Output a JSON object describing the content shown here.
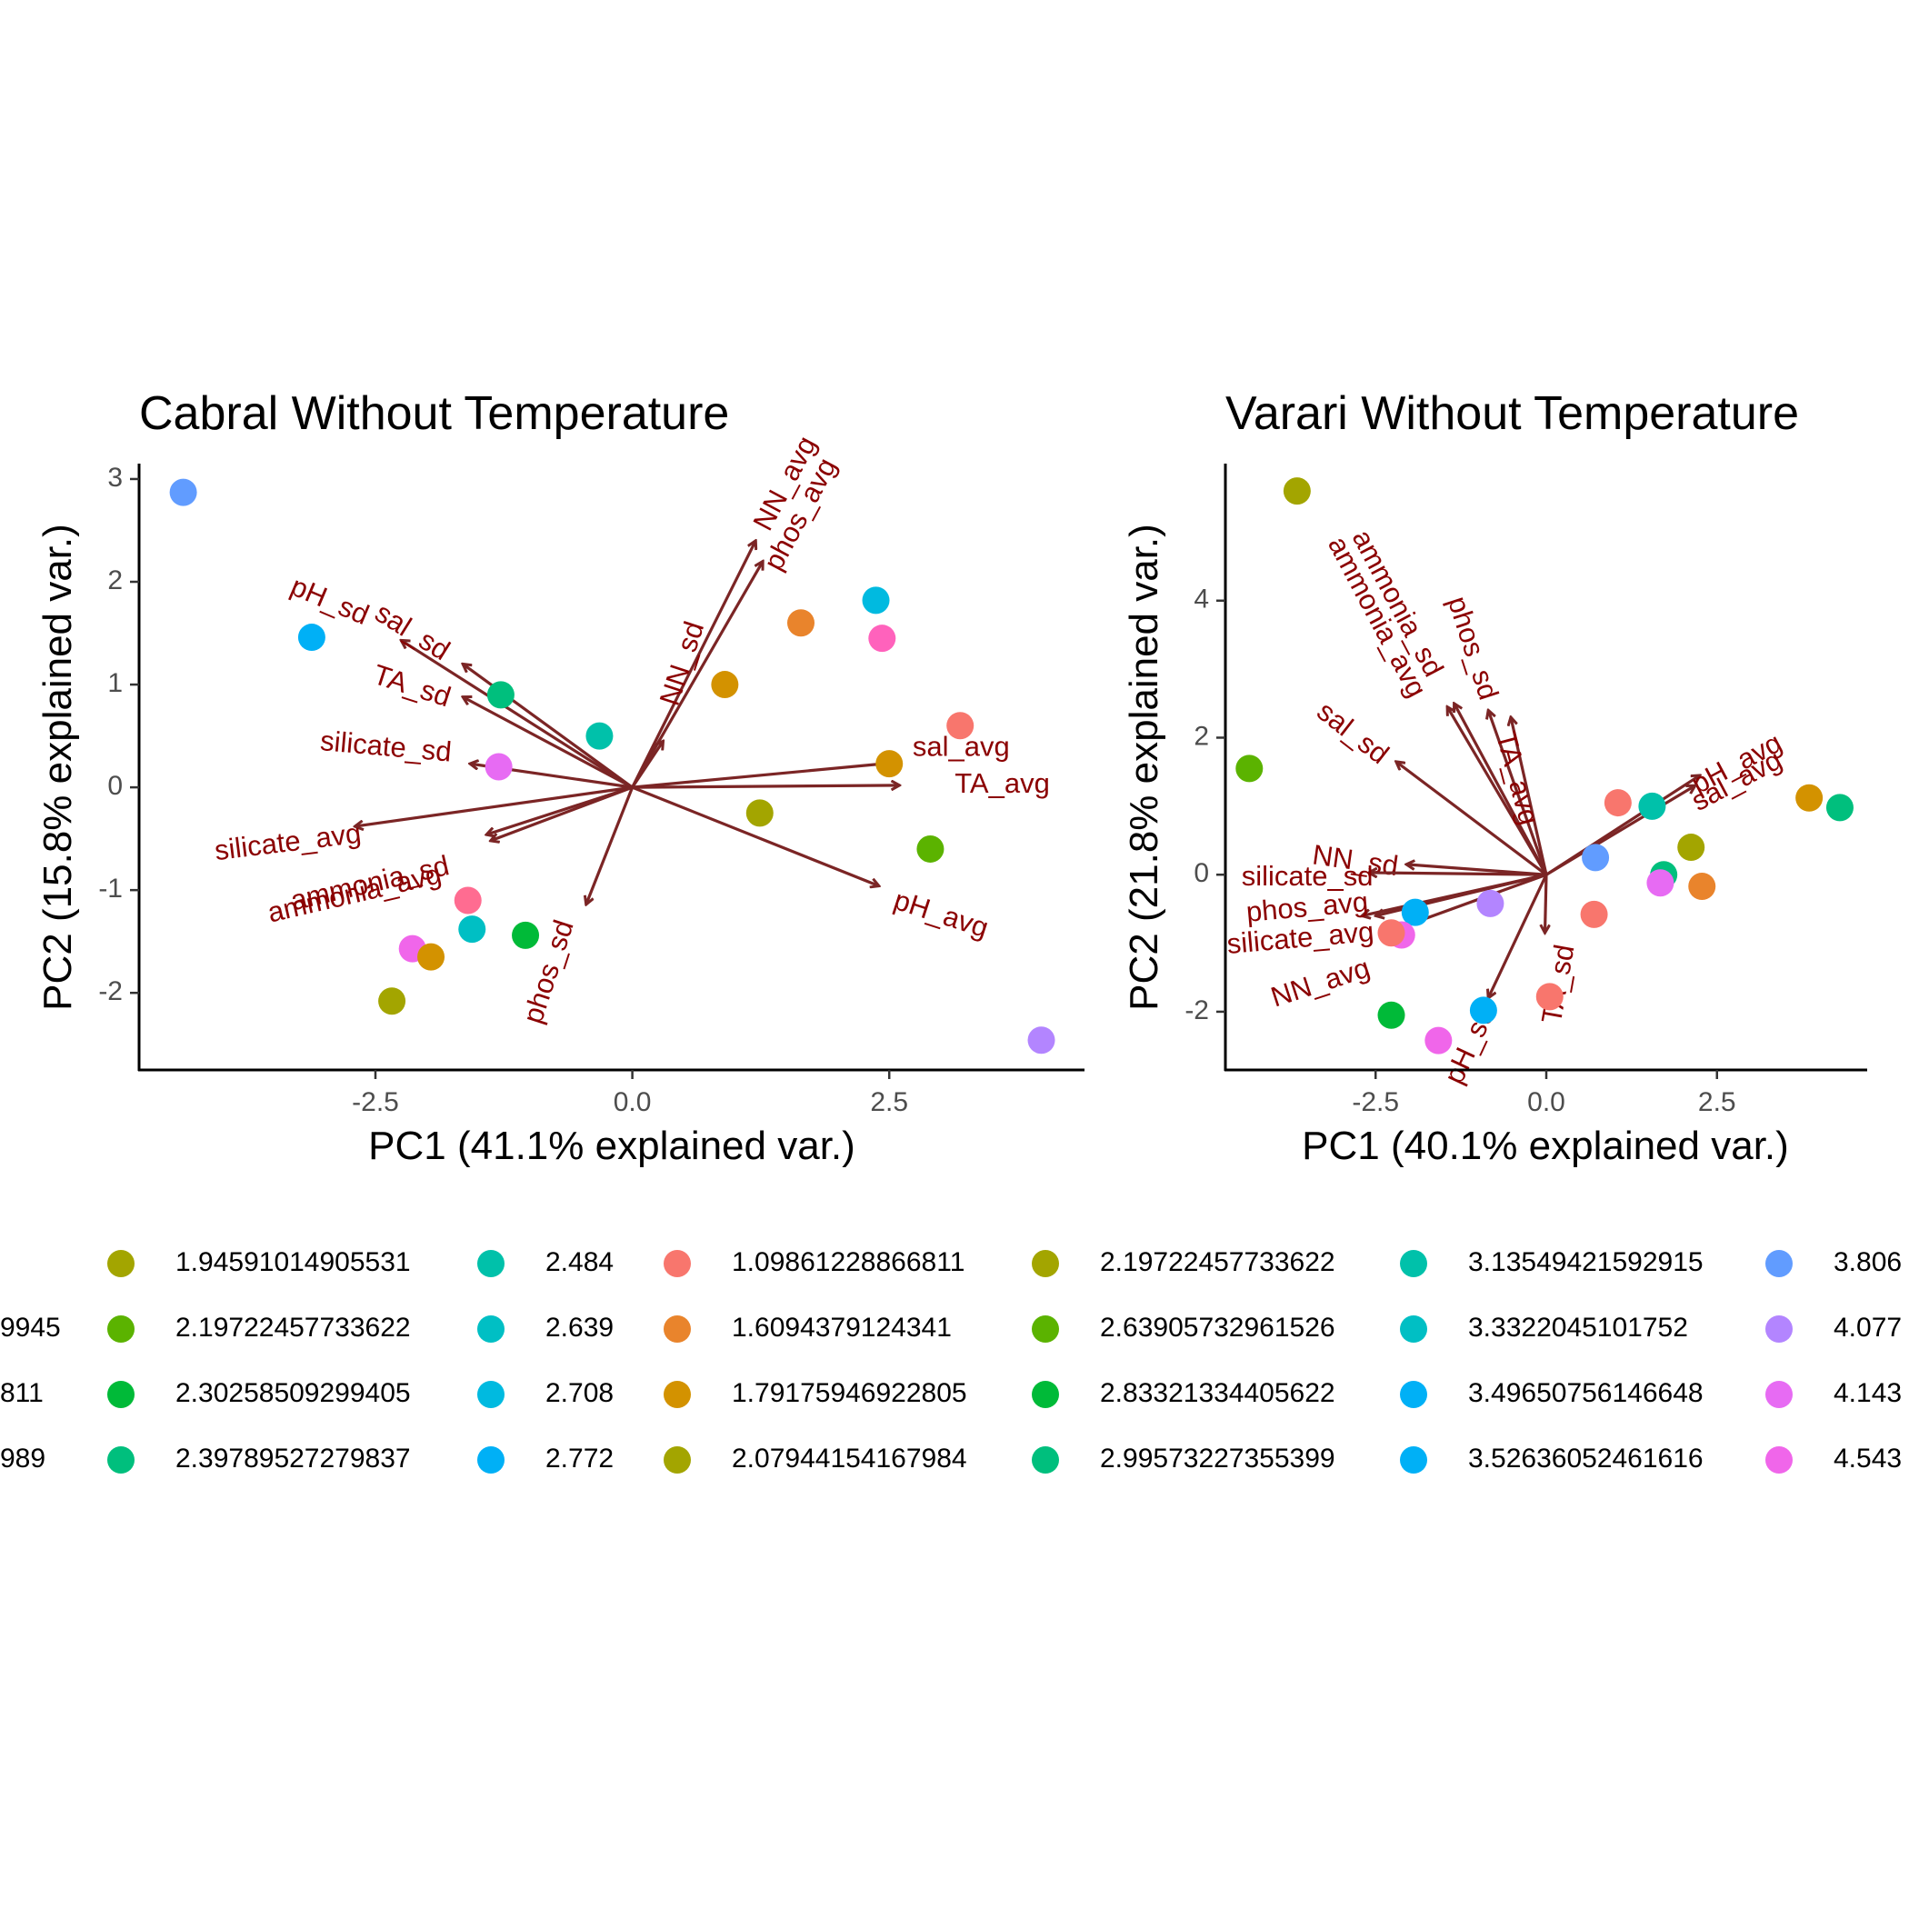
{
  "chart_data": [
    {
      "type": "scatter",
      "title": "Cabral Without Temperature",
      "xlabel": "PC1 (41.1% explained var.)",
      "ylabel": "PC2 (15.8% explained var.)",
      "xlim": [
        -4.8,
        4.4
      ],
      "ylim": [
        -2.75,
        3.15
      ],
      "xticks": [
        {
          "value": -2.5,
          "label": "-2.5"
        },
        {
          "value": 0.0,
          "label": "0.0"
        },
        {
          "value": 2.5,
          "label": "2.5"
        }
      ],
      "yticks": [
        {
          "value": 3,
          "label": "3"
        },
        {
          "value": 2,
          "label": "2"
        },
        {
          "value": 1,
          "label": "1"
        },
        {
          "value": 0,
          "label": "0"
        },
        {
          "value": -1,
          "label": "-1"
        },
        {
          "value": -2,
          "label": "-2"
        }
      ],
      "points": [
        {
          "x": -4.37,
          "y": 2.87,
          "color": "#619CFF"
        },
        {
          "x": -3.12,
          "y": 1.46,
          "color": "#00B0F6"
        },
        {
          "x": -1.28,
          "y": 0.9,
          "color": "#00BF7D"
        },
        {
          "x": -1.3,
          "y": 0.2,
          "color": "#E76BF3"
        },
        {
          "x": -0.32,
          "y": 0.5,
          "color": "#00C1AA"
        },
        {
          "x": 0.9,
          "y": 1.0,
          "color": "#D39200"
        },
        {
          "x": 1.64,
          "y": 1.6,
          "color": "#E9842C"
        },
        {
          "x": 2.37,
          "y": 1.82,
          "color": "#00BAE0"
        },
        {
          "x": 2.43,
          "y": 1.45,
          "color": "#FF62BC"
        },
        {
          "x": 3.19,
          "y": 0.6,
          "color": "#F8766D"
        },
        {
          "x": 2.5,
          "y": 0.23,
          "color": "#D39200"
        },
        {
          "x": 1.24,
          "y": -0.25,
          "color": "#A3A500"
        },
        {
          "x": 2.9,
          "y": -0.6,
          "color": "#5BB300"
        },
        {
          "x": -1.6,
          "y": -1.1,
          "color": "#FF6C91"
        },
        {
          "x": -1.56,
          "y": -1.38,
          "color": "#00BFC4"
        },
        {
          "x": -1.04,
          "y": -1.44,
          "color": "#00BA38"
        },
        {
          "x": -2.14,
          "y": -1.57,
          "color": "#F066EA"
        },
        {
          "x": -1.96,
          "y": -1.65,
          "color": "#D39200"
        },
        {
          "x": -2.34,
          "y": -2.08,
          "color": "#A3A500"
        },
        {
          "x": 3.98,
          "y": -2.46,
          "color": "#B385FF"
        }
      ],
      "loadings": [
        {
          "label": "NN_avg",
          "x": 1.2,
          "y": 2.4,
          "lx": 1.5,
          "ly": 2.95,
          "rot": -62
        },
        {
          "label": "phos_avg",
          "x": 1.27,
          "y": 2.2,
          "lx": 1.65,
          "ly": 2.65,
          "rot": -62
        },
        {
          "label": "NN_sd",
          "x": 0.3,
          "y": 0.45,
          "lx": 0.5,
          "ly": 1.2,
          "rot": -72
        },
        {
          "label": "sal_avg",
          "x": 2.55,
          "y": 0.24,
          "lx": 3.2,
          "ly": 0.38,
          "rot": 0
        },
        {
          "label": "TA_avg",
          "x": 2.6,
          "y": 0.02,
          "lx": 3.6,
          "ly": 0.02,
          "rot": 0
        },
        {
          "label": "pH_avg",
          "x": 2.4,
          "y": -0.96,
          "lx": 3.0,
          "ly": -1.25,
          "rot": 18
        },
        {
          "label": "phos_sd",
          "x": -0.45,
          "y": -1.14,
          "lx": -0.8,
          "ly": -1.8,
          "rot": -72
        },
        {
          "label": "pH_sd",
          "x": -2.25,
          "y": 1.43,
          "lx": -2.95,
          "ly": 1.8,
          "rot": 23
        },
        {
          "label": "sal_sd",
          "x": -1.65,
          "y": 1.2,
          "lx": -2.15,
          "ly": 1.5,
          "rot": 32
        },
        {
          "label": "TA_sd",
          "x": -1.65,
          "y": 0.88,
          "lx": -2.15,
          "ly": 0.97,
          "rot": 18
        },
        {
          "label": "silicate_sd",
          "x": -1.58,
          "y": 0.23,
          "lx": -2.4,
          "ly": 0.38,
          "rot": 5
        },
        {
          "label": "silicate_avg",
          "x": -2.7,
          "y": -0.38,
          "lx": -3.35,
          "ly": -0.55,
          "rot": -7
        },
        {
          "label": "ammonia_sd",
          "x": -1.42,
          "y": -0.46,
          "lx": -2.55,
          "ly": -0.95,
          "rot": -13
        },
        {
          "label": "ammonia_avg",
          "x": -1.38,
          "y": -0.52,
          "lx": -2.7,
          "ly": -1.05,
          "rot": -13
        }
      ]
    },
    {
      "type": "scatter",
      "title": "Varari Without Temperature",
      "xlabel": "PC1 (40.1% explained var.)",
      "ylabel": "PC2 (21.8% explained var.)",
      "xlim": [
        -4.7,
        4.7
      ],
      "ylim": [
        -2.85,
        6.0
      ],
      "xticks": [
        {
          "value": -2.5,
          "label": "-2.5"
        },
        {
          "value": 0.0,
          "label": "0.0"
        },
        {
          "value": 2.5,
          "label": "2.5"
        }
      ],
      "yticks": [
        {
          "value": 4,
          "label": "4"
        },
        {
          "value": 2,
          "label": "2"
        },
        {
          "value": 0,
          "label": "0"
        },
        {
          "value": -2,
          "label": "-2"
        }
      ],
      "points": [
        {
          "x": -3.65,
          "y": 5.6,
          "color": "#A3A500"
        },
        {
          "x": -4.35,
          "y": 1.55,
          "color": "#5BB300"
        },
        {
          "x": 1.05,
          "y": 1.05,
          "color": "#F8766D"
        },
        {
          "x": 1.55,
          "y": 1.0,
          "color": "#00C1AA"
        },
        {
          "x": 3.85,
          "y": 1.12,
          "color": "#D39200"
        },
        {
          "x": 4.3,
          "y": 0.98,
          "color": "#00BF7D"
        },
        {
          "x": 0.72,
          "y": 0.25,
          "color": "#619CFF"
        },
        {
          "x": 2.12,
          "y": 0.4,
          "color": "#A3A500"
        },
        {
          "x": 1.72,
          "y": 0.0,
          "color": "#00BF7D"
        },
        {
          "x": 1.67,
          "y": -0.12,
          "color": "#E76BF3"
        },
        {
          "x": 2.28,
          "y": -0.17,
          "color": "#E9842C"
        },
        {
          "x": -0.82,
          "y": -0.42,
          "color": "#B385FF"
        },
        {
          "x": 0.7,
          "y": -0.58,
          "color": "#F8766D"
        },
        {
          "x": -1.92,
          "y": -0.55,
          "color": "#00B0F6"
        },
        {
          "x": -2.12,
          "y": -0.88,
          "color": "#F066EA"
        },
        {
          "x": -2.27,
          "y": -0.85,
          "color": "#F8766D"
        },
        {
          "x": 0.05,
          "y": -1.78,
          "color": "#F8766D"
        },
        {
          "x": -0.92,
          "y": -1.98,
          "color": "#00B0F6"
        },
        {
          "x": -2.27,
          "y": -2.05,
          "color": "#00BA38"
        },
        {
          "x": -1.58,
          "y": -2.42,
          "color": "#F066EA"
        }
      ],
      "loadings": [
        {
          "label": "ammonia_sd",
          "x": -1.35,
          "y": 2.5,
          "lx": -2.2,
          "ly": 3.95,
          "rot": 62
        },
        {
          "label": "ammonia_avg",
          "x": -1.45,
          "y": 2.45,
          "lx": -2.5,
          "ly": 3.75,
          "rot": 62
        },
        {
          "label": "phos_sd",
          "x": -0.85,
          "y": 2.4,
          "lx": -1.1,
          "ly": 3.3,
          "rot": 72
        },
        {
          "label": "TA_avg",
          "x": -0.52,
          "y": 2.3,
          "lx": -0.45,
          "ly": 1.4,
          "rot": 75
        },
        {
          "label": "sal_sd",
          "x": -2.2,
          "y": 1.65,
          "lx": -2.85,
          "ly": 2.05,
          "rot": 38
        },
        {
          "label": "pH_avg",
          "x": 2.25,
          "y": 1.45,
          "lx": 2.8,
          "ly": 1.6,
          "rot": -28
        },
        {
          "label": "sal_avg",
          "x": 2.18,
          "y": 1.3,
          "lx": 2.8,
          "ly": 1.35,
          "rot": -28
        },
        {
          "label": "NN_sd",
          "x": -2.05,
          "y": 0.15,
          "lx": -2.8,
          "ly": 0.18,
          "rot": 8
        },
        {
          "label": "silicate_sd",
          "x": -2.6,
          "y": 0.03,
          "lx": -3.5,
          "ly": -0.05,
          "rot": 0
        },
        {
          "label": "phos_avg",
          "x": -2.7,
          "y": -0.6,
          "lx": -3.5,
          "ly": -0.5,
          "rot": -5
        },
        {
          "label": "silicate_avg",
          "x": -2.5,
          "y": -0.6,
          "lx": -3.6,
          "ly": -0.95,
          "rot": -5
        },
        {
          "label": "NN_avg",
          "x": -2.35,
          "y": -0.85,
          "lx": -3.3,
          "ly": -1.6,
          "rot": -18
        },
        {
          "label": "pH_sd",
          "x": -0.85,
          "y": -1.8,
          "lx": -1.1,
          "ly": -2.5,
          "rot": -65
        },
        {
          "label": "TA_sd",
          "x": -0.02,
          "y": -0.85,
          "lx": 0.2,
          "ly": -1.6,
          "rot": -80
        }
      ]
    }
  ],
  "legend": {
    "columns": [
      {
        "items": [
          {
            "color": "#A3A500",
            "label": "1.94591014905531"
          },
          {
            "color": "#5BB300",
            "label": "2.19722457733622"
          },
          {
            "color": "#00BA38",
            "label": "2.30258509299405"
          },
          {
            "color": "#00BF7D",
            "label": "2.39789527279837"
          }
        ]
      },
      {
        "items": [
          {
            "color": "#00C1AA",
            "label": "2.484"
          },
          {
            "color": "#00BFC4",
            "label": "2.639"
          },
          {
            "color": "#00BAE0",
            "label": "2.708"
          },
          {
            "color": "#00B0F6",
            "label": "2.772"
          }
        ]
      },
      {
        "items": [
          {
            "color": "#F8766D",
            "label": "1.09861228866811"
          },
          {
            "color": "#E9842C",
            "label": "1.6094379124341"
          },
          {
            "color": "#D39200",
            "label": "1.79175946922805"
          },
          {
            "color": "#A3A500",
            "label": "2.07944154167984"
          }
        ]
      },
      {
        "items": [
          {
            "color": "#A3A500",
            "label": "2.19722457733622"
          },
          {
            "color": "#5BB300",
            "label": "2.63905732961526"
          },
          {
            "color": "#00BA38",
            "label": "2.83321334405622"
          },
          {
            "color": "#00BF7D",
            "label": "2.99573227355399"
          }
        ]
      },
      {
        "items": [
          {
            "color": "#00C1AA",
            "label": "3.13549421592915"
          },
          {
            "color": "#00BFC4",
            "label": "3.3322045101752"
          },
          {
            "color": "#00B0F6",
            "label": "3.49650756146648"
          },
          {
            "color": "#00B0F6",
            "label": "3.52636052461616"
          }
        ]
      },
      {
        "items": [
          {
            "color": "#619CFF",
            "label": "3.806"
          },
          {
            "color": "#B385FF",
            "label": "4.077"
          },
          {
            "color": "#E76BF3",
            "label": "4.143"
          },
          {
            "color": "#F066EA",
            "label": "4.543"
          }
        ]
      }
    ],
    "clipped_left": [
      "",
      "9945",
      "811",
      "989"
    ]
  }
}
